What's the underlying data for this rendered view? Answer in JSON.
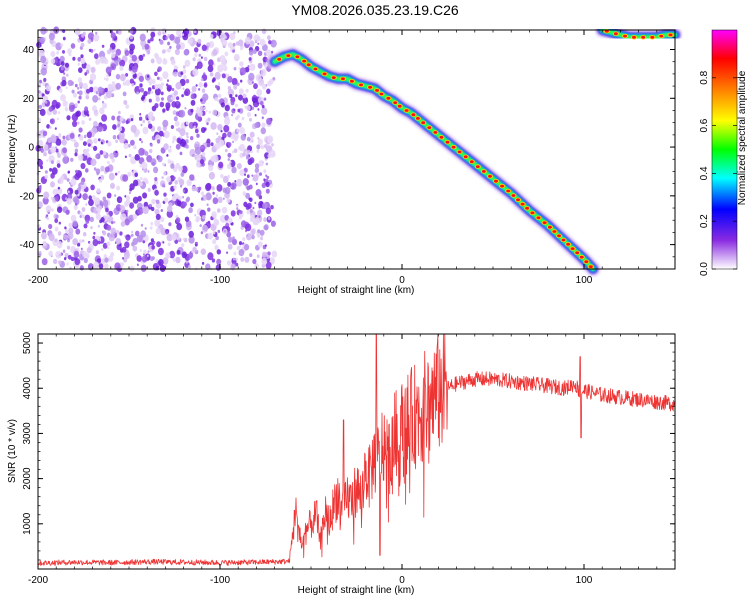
{
  "title": "YM08.2026.035.23.19.C26",
  "chart_data": [
    {
      "type": "heatmap",
      "xlabel": "Height of straight line (km)",
      "ylabel": "Frequency (Hz)",
      "xlim": [
        -200,
        150
      ],
      "ylim": [
        -50,
        48
      ],
      "x_ticks": [
        -200,
        -100,
        0,
        100
      ],
      "y_ticks": [
        -40,
        -20,
        0,
        20,
        40
      ],
      "x_tick_labels": [
        "-200",
        "-100",
        "0",
        "100"
      ],
      "y_tick_labels": [
        "-40",
        "-20",
        "0",
        "20",
        "40"
      ],
      "noise_region": {
        "x": [
          -200,
          -70
        ],
        "y": [
          -50,
          48
        ]
      },
      "ridge": {
        "x": [
          -70,
          -65,
          -60,
          -55,
          -50,
          -45,
          -40,
          -35,
          -30,
          -25,
          -20,
          -15,
          -10,
          -5,
          0,
          5,
          10,
          20,
          30,
          40,
          50,
          60,
          70,
          80,
          90,
          100,
          105
        ],
        "y": [
          35,
          37,
          38,
          36,
          33,
          31,
          29,
          28,
          28,
          26,
          25,
          24,
          21,
          19,
          16,
          14,
          11,
          5,
          -1,
          -7,
          -13,
          -19,
          -26,
          -32,
          -39,
          -46,
          -50
        ]
      },
      "upper_ridge": {
        "x": [
          110,
          115,
          120,
          125,
          130,
          135,
          140,
          145,
          150
        ],
        "y": [
          48,
          47,
          46,
          45,
          45,
          45,
          45,
          46,
          46
        ]
      },
      "colorbar": {
        "label": "Normalized spectral amplitude",
        "range": [
          0.0,
          1.0
        ],
        "ticks": [
          0.0,
          0.2,
          0.4,
          0.6,
          0.8
        ],
        "tick_labels": [
          "0.0",
          "0.2",
          "0.4",
          "0.6",
          "0.8"
        ],
        "colormap": [
          "#ffffff",
          "#8a2be2",
          "#0000ff",
          "#00ffff",
          "#00ff00",
          "#ffff00",
          "#ff8000",
          "#ff0000",
          "#ff00ff"
        ]
      }
    },
    {
      "type": "line",
      "xlabel": "Height of straight line (km)",
      "ylabel": "SNR (10 * v/v)",
      "xlim": [
        -200,
        150
      ],
      "ylim": [
        0,
        5200
      ],
      "x_ticks": [
        -200,
        -100,
        0,
        100
      ],
      "y_ticks": [
        1000,
        2000,
        3000,
        4000,
        5000
      ],
      "x_tick_labels": [
        "-200",
        "-100",
        "0",
        "100"
      ],
      "y_tick_labels": [
        "1000",
        "2000",
        "3000",
        "4000",
        "5000"
      ],
      "series": [
        {
          "color": "#ee3333",
          "x": [
            -200,
            -180,
            -160,
            -140,
            -120,
            -100,
            -80,
            -70,
            -62,
            -58,
            -55,
            -52,
            -50,
            -47,
            -45,
            -42,
            -40,
            -37,
            -35,
            -33,
            -30,
            -28,
            -25,
            -22,
            -20,
            -18,
            -15,
            -13,
            -10,
            -7,
            -5,
            -2,
            0,
            5,
            10,
            15,
            20,
            25,
            30,
            35,
            40,
            50,
            60,
            70,
            80,
            90,
            95,
            98,
            100,
            110,
            120,
            130,
            140,
            150
          ],
          "y": [
            130,
            150,
            140,
            160,
            150,
            140,
            150,
            160,
            170,
            1300,
            500,
            900,
            1000,
            1200,
            600,
            1300,
            1000,
            1500,
            1700,
            1200,
            1600,
            1500,
            1800,
            1600,
            2300,
            2000,
            2500,
            2400,
            2800,
            2500,
            2900,
            3000,
            3100,
            3300,
            3500,
            3700,
            3900,
            4000,
            4100,
            4150,
            4200,
            4200,
            4150,
            4100,
            4050,
            4000,
            4100,
            3900,
            3950,
            3850,
            3800,
            3750,
            3700,
            3650
          ]
        }
      ]
    }
  ]
}
